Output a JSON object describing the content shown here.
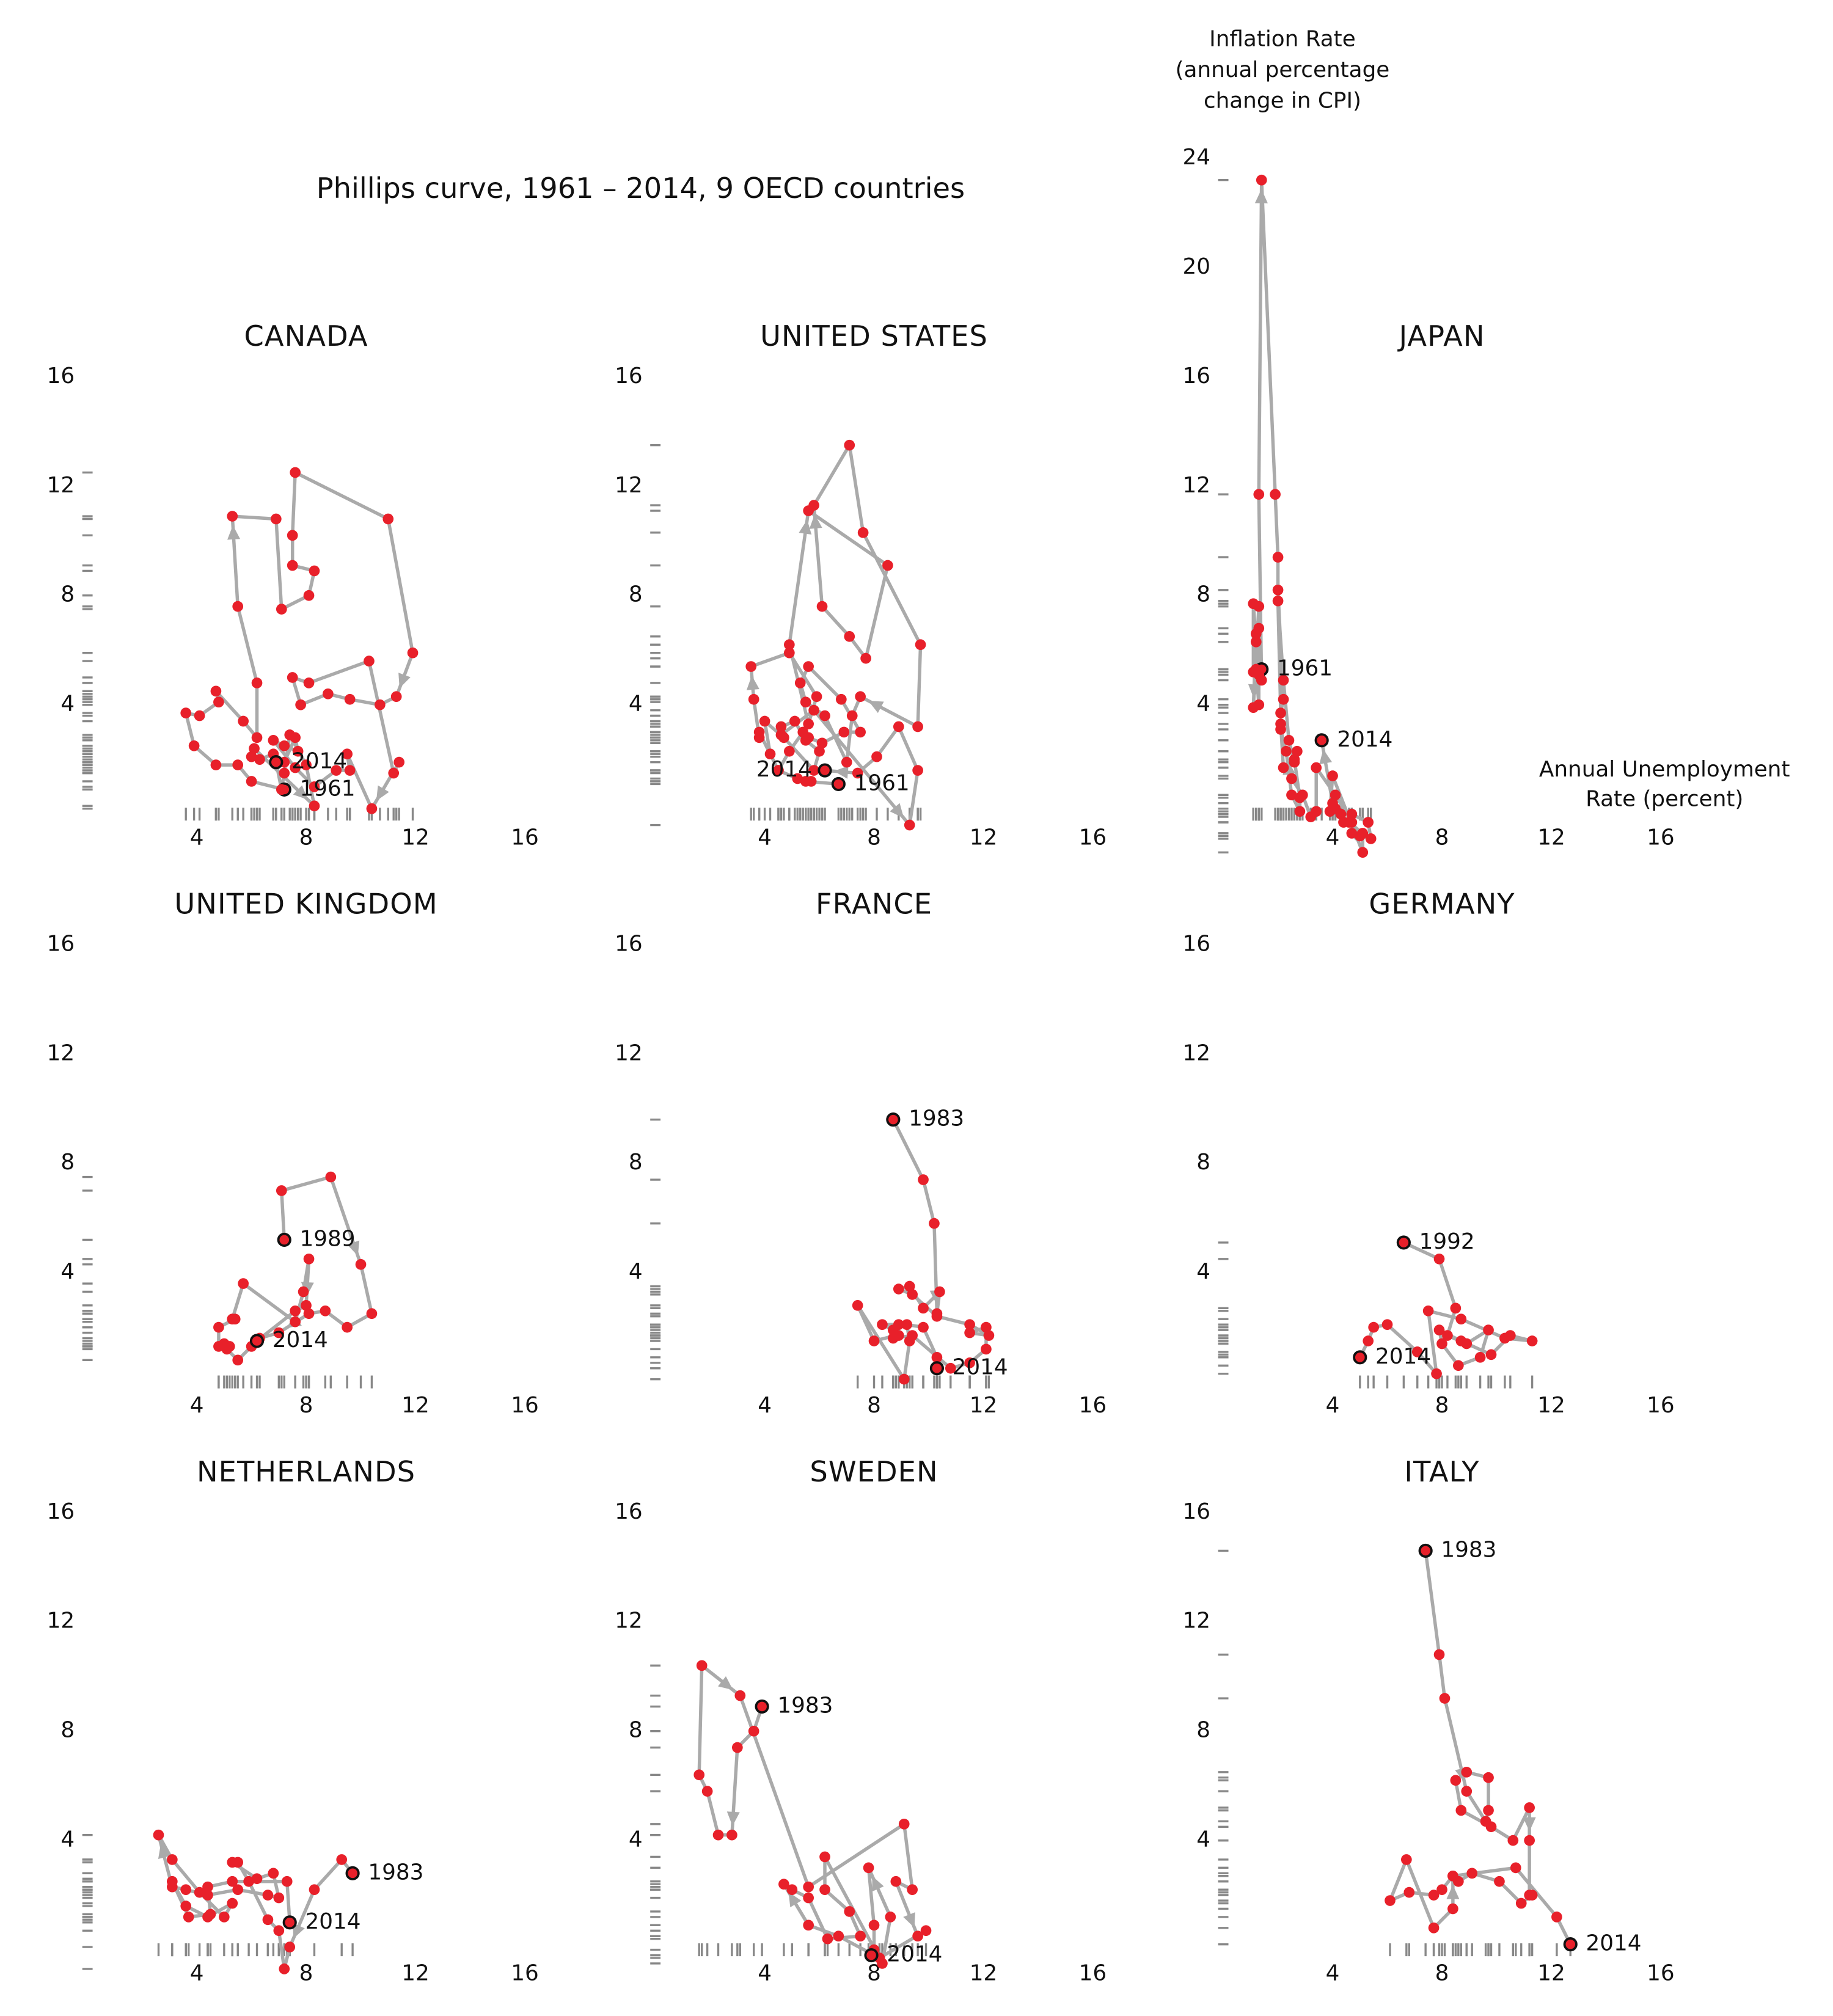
{
  "title": "Phillips curve, 1961 – 2014, 9 OECD countries",
  "chart_data": [
    {
      "type": "scatter",
      "title": "CANADA",
      "start_label": "1961",
      "end_label": "2014",
      "x": [
        7.2,
        6.0,
        5.5,
        4.7,
        3.9,
        3.6,
        4.1,
        4.8,
        4.7,
        5.7,
        6.2,
        6.2,
        5.5,
        5.3,
        6.9,
        7.1,
        8.1,
        8.3,
        7.5,
        7.5,
        7.6,
        11.0,
        11.9,
        11.3,
        10.7,
        9.6,
        8.8,
        7.8,
        7.5,
        8.1,
        10.3,
        11.2,
        11.4,
        10.4,
        9.5,
        9.6,
        9.1,
        8.3,
        7.6,
        6.8,
        7.2,
        7.7,
        7.6,
        7.2,
        6.8,
        6.3,
        6.0,
        6.1,
        8.3,
        8.0,
        7.4,
        7.2,
        7.1,
        6.9
      ],
      "y": [
        0.9,
        1.2,
        1.8,
        1.8,
        2.5,
        3.7,
        3.6,
        4.1,
        4.5,
        3.4,
        2.8,
        4.8,
        7.6,
        10.9,
        10.8,
        7.5,
        8.0,
        8.9,
        9.1,
        10.2,
        12.5,
        10.8,
        5.9,
        4.3,
        4.0,
        4.2,
        4.4,
        4.0,
        5.0,
        4.8,
        5.6,
        1.5,
        1.9,
        0.2,
        2.2,
        1.6,
        1.6,
        1.0,
        1.7,
        2.7,
        2.5,
        2.3,
        2.8,
        1.9,
        2.2,
        2.0,
        2.1,
        2.4,
        0.3,
        1.8,
        2.9,
        1.5,
        0.9,
        1.9
      ],
      "xlim": [
        0,
        16
      ],
      "ylim": [
        0,
        16
      ],
      "xticks": [
        4,
        8,
        12,
        16
      ],
      "yticks": [
        4,
        8,
        12,
        16
      ],
      "color": "#e8202a",
      "line_color": "#aaaaaa"
    },
    {
      "type": "scatter",
      "title": "UNITED STATES",
      "start_label": "1961",
      "end_label": "2014",
      "x": [
        6.7,
        5.5,
        5.7,
        5.2,
        4.5,
        3.8,
        3.8,
        3.6,
        3.5,
        4.9,
        5.9,
        5.6,
        4.9,
        5.6,
        8.5,
        7.7,
        7.1,
        6.1,
        5.8,
        7.1,
        7.6,
        9.7,
        9.6,
        7.5,
        7.2,
        7.0,
        6.2,
        5.5,
        5.3,
        5.6,
        6.8,
        7.5,
        6.9,
        6.1,
        5.6,
        5.4,
        4.9,
        4.5,
        4.2,
        4.0,
        4.7,
        5.8,
        6.0,
        5.5,
        5.1,
        4.6,
        4.6,
        5.8,
        9.3,
        9.6,
        8.9,
        8.1,
        7.4,
        6.2
      ],
      "y": [
        1.1,
        1.2,
        1.2,
        1.3,
        1.6,
        3.0,
        2.8,
        4.2,
        5.4,
        5.9,
        4.3,
        3.3,
        6.2,
        11.1,
        9.1,
        5.7,
        6.5,
        7.6,
        11.3,
        13.5,
        10.3,
        6.2,
        3.2,
        4.3,
        3.6,
        1.9,
        3.6,
        4.1,
        4.8,
        5.4,
        4.2,
        3.0,
        3.0,
        2.6,
        2.8,
        3.0,
        2.3,
        1.6,
        2.2,
        3.4,
        2.8,
        1.6,
        2.3,
        2.7,
        3.4,
        3.2,
        2.9,
        3.8,
        -0.4,
        1.6,
        3.2,
        2.1,
        1.5,
        1.6
      ],
      "xlim": [
        0,
        16
      ],
      "ylim": [
        0,
        16
      ],
      "xticks": [
        4,
        8,
        12,
        16
      ],
      "yticks": [
        4,
        8,
        12,
        16
      ],
      "color": "#e8202a",
      "line_color": "#aaaaaa"
    },
    {
      "type": "scatter",
      "title": "JAPAN",
      "start_label": "1961",
      "end_label": "2014",
      "y_label": [
        "Inflation Rate",
        "(annual percentage",
        "change in CPI)"
      ],
      "x_label": [
        "Annual Unemployment",
        "Rate (percent)"
      ],
      "x": [
        1.4,
        1.3,
        1.3,
        1.1,
        1.2,
        1.3,
        1.3,
        1.2,
        1.1,
        1.1,
        1.2,
        1.4,
        1.3,
        1.4,
        1.9,
        2.0,
        2.0,
        2.2,
        2.1,
        2.0,
        2.2,
        2.4,
        2.6,
        2.7,
        2.6,
        2.8,
        2.8,
        2.5,
        2.3,
        2.1,
        2.1,
        2.2,
        2.5,
        2.9,
        3.2,
        3.4,
        3.4,
        4.1,
        4.7,
        4.7,
        5.0,
        5.4,
        5.3,
        4.7,
        4.4,
        4.1,
        3.9,
        4.0,
        5.1,
        5.1,
        4.6,
        4.3,
        4.0,
        3.6
      ],
      "y": [
        5.3,
        6.8,
        7.6,
        3.9,
        6.6,
        5.1,
        4.0,
        5.3,
        5.2,
        7.7,
        6.3,
        4.9,
        11.7,
        23.2,
        11.7,
        9.4,
        8.2,
        4.2,
        3.7,
        7.8,
        4.9,
        2.7,
        1.9,
        2.3,
        2.0,
        0.6,
        0.1,
        0.7,
        2.3,
        3.1,
        3.3,
        1.7,
        1.3,
        0.7,
        -0.1,
        0.1,
        1.7,
        0.7,
        -0.3,
        -0.7,
        -0.8,
        -0.9,
        -0.3,
        0.0,
        -0.3,
        0.2,
        0.1,
        1.4,
        -1.4,
        -0.7,
        -0.3,
        0.0,
        0.4,
        2.7
      ],
      "xlim": [
        0,
        16
      ],
      "ylim": [
        0,
        24
      ],
      "xticks": [
        4,
        8,
        12,
        16
      ],
      "yticks": [
        4,
        8,
        12,
        16,
        20,
        24
      ],
      "color": "#e8202a",
      "line_color": "#aaaaaa"
    },
    {
      "type": "scatter",
      "title": "UNITED KINGDOM",
      "start_label": "1989",
      "end_label": "2014",
      "x": [
        7.2,
        7.1,
        8.9,
        10.0,
        10.4,
        9.5,
        8.7,
        8.1,
        7.0,
        6.3,
        6.0,
        5.5,
        5.1,
        5.2,
        5.0,
        4.8,
        4.8,
        5.4,
        5.3,
        5.7,
        7.6,
        7.9,
        8.1,
        8.0,
        7.6,
        6.2
      ],
      "y": [
        5.2,
        7.0,
        7.5,
        4.3,
        2.5,
        2.0,
        2.6,
        2.5,
        1.8,
        1.6,
        1.3,
        0.8,
        1.2,
        1.3,
        1.4,
        1.3,
        2.0,
        2.3,
        2.3,
        3.6,
        2.2,
        3.3,
        4.5,
        2.8,
        2.6,
        1.5
      ],
      "xlim": [
        0,
        16
      ],
      "ylim": [
        0,
        16
      ],
      "xticks": [
        4,
        8,
        12,
        16
      ],
      "yticks": [
        4,
        8,
        12,
        16
      ],
      "color": "#e8202a",
      "line_color": "#aaaaaa"
    },
    {
      "type": "scatter",
      "title": "FRANCE",
      "start_label": "1983",
      "end_label": "2014",
      "x": [
        8.7,
        9.8,
        10.2,
        10.3,
        10.4,
        9.8,
        9.3,
        8.9,
        9.4,
        10.3,
        11.5,
        12.2,
        11.5,
        12.1,
        12.1,
        11.5,
        10.8,
        9.4,
        8.7,
        8.7,
        8.3,
        8.9,
        8.9,
        8.8,
        8.0,
        7.4,
        9.1,
        9.3,
        9.2,
        9.8,
        10.3,
        10.3
      ],
      "y": [
        9.6,
        7.4,
        5.8,
        2.5,
        3.3,
        2.7,
        3.5,
        3.4,
        3.2,
        2.4,
        2.1,
        1.7,
        1.8,
        2.0,
        1.2,
        0.7,
        0.5,
        1.7,
        1.6,
        1.9,
        2.1,
        2.1,
        1.7,
        1.7,
        1.5,
        2.8,
        0.1,
        1.5,
        2.1,
        2.0,
        0.9,
        0.5
      ],
      "xlim": [
        0,
        16
      ],
      "ylim": [
        0,
        16
      ],
      "xticks": [
        4,
        8,
        12,
        16
      ],
      "yticks": [
        4,
        8,
        12,
        16
      ],
      "color": "#e8202a",
      "line_color": "#aaaaaa"
    },
    {
      "type": "scatter",
      "title": "GERMANY",
      "start_label": "1992",
      "end_label": "2014",
      "x": [
        6.6,
        7.9,
        8.5,
        8.2,
        8.9,
        9.7,
        9.4,
        8.6,
        8.0,
        7.9,
        8.7,
        9.8,
        10.5,
        11.3,
        10.3,
        8.7,
        7.5,
        7.8,
        7.1,
        6.0,
        5.5,
        5.3,
        5.0
      ],
      "y": [
        5.1,
        4.5,
        2.7,
        1.7,
        1.4,
        1.9,
        0.9,
        0.6,
        1.4,
        1.9,
        1.5,
        1.0,
        1.7,
        1.5,
        1.6,
        2.3,
        2.6,
        0.3,
        1.1,
        2.1,
        2.0,
        1.5,
        0.9
      ],
      "xlim": [
        0,
        16
      ],
      "ylim": [
        0,
        16
      ],
      "xticks": [
        4,
        8,
        12,
        16
      ],
      "yticks": [
        4,
        8,
        12,
        16
      ],
      "color": "#e8202a",
      "line_color": "#aaaaaa"
    },
    {
      "type": "scatter",
      "title": "NETHERLANDS",
      "start_label": "1983",
      "end_label": "2014",
      "x": [
        9.7,
        9.3,
        8.3,
        7.4,
        7.2,
        7.0,
        6.6,
        5.9,
        5.5,
        5.3,
        6.2,
        6.8,
        7.0,
        6.6,
        5.5,
        4.4,
        3.6,
        3.1,
        2.6,
        3.1,
        4.1,
        5.0,
        5.3,
        4.4,
        3.6,
        3.1,
        3.7,
        4.5,
        4.4,
        5.3,
        7.3,
        7.4
      ],
      "y": [
        2.8,
        3.3,
        2.2,
        0.1,
        -0.7,
        0.7,
        1.1,
        2.5,
        3.2,
        3.2,
        2.6,
        2.8,
        1.9,
        2.0,
        2.2,
        2.0,
        2.2,
        2.3,
        4.2,
        3.3,
        2.1,
        1.2,
        1.7,
        1.2,
        1.6,
        2.5,
        1.2,
        1.3,
        2.3,
        2.5,
        2.5,
        1.0
      ],
      "xlim": [
        0,
        16
      ],
      "ylim": [
        0,
        16
      ],
      "xticks": [
        4,
        8,
        12,
        16
      ],
      "yticks": [
        4,
        8,
        12,
        16
      ],
      "color": "#e8202a",
      "line_color": "#aaaaaa"
    },
    {
      "type": "scatter",
      "title": "SWEDEN",
      "start_label": "1983",
      "end_label": "2014",
      "x": [
        3.9,
        3.6,
        3.0,
        2.8,
        2.3,
        1.9,
        1.6,
        1.7,
        3.1,
        5.6,
        9.1,
        9.4,
        8.8,
        9.6,
        9.9,
        8.2,
        6.7,
        5.6,
        4.7,
        5.0,
        5.6,
        6.3,
        7.5,
        7.1,
        6.2,
        6.2,
        8.3,
        8.6,
        7.8,
        8.0,
        8.0,
        7.9
      ],
      "y": [
        8.9,
        8.0,
        7.4,
        4.2,
        4.2,
        5.8,
        6.4,
        10.4,
        9.3,
        2.3,
        4.6,
        2.2,
        2.5,
        0.5,
        0.7,
        -0.3,
        0.5,
        0.9,
        2.4,
        2.2,
        1.9,
        0.4,
        0.5,
        1.4,
        2.2,
        3.4,
        -0.5,
        1.2,
        3.0,
        0.9,
        0.0,
        -0.2
      ],
      "xlim": [
        0,
        16
      ],
      "ylim": [
        0,
        16
      ],
      "xticks": [
        4,
        8,
        12,
        16
      ],
      "yticks": [
        4,
        8,
        12,
        16
      ],
      "color": "#e8202a",
      "line_color": "#aaaaaa"
    },
    {
      "type": "scatter",
      "title": "ITALY",
      "start_label": "1983",
      "end_label": "2014",
      "x": [
        7.4,
        7.9,
        8.1,
        8.9,
        9.6,
        9.7,
        9.7,
        8.9,
        8.5,
        8.7,
        9.8,
        10.6,
        11.2,
        11.2,
        11.2,
        11.3,
        10.9,
        10.1,
        9.1,
        8.6,
        8.4,
        8.0,
        7.7,
        6.8,
        6.1,
        6.7,
        7.7,
        8.4,
        8.4,
        10.7,
        12.2,
        12.7
      ],
      "y": [
        14.6,
        10.8,
        9.2,
        5.8,
        4.7,
        5.1,
        6.3,
        6.5,
        6.2,
        5.1,
        4.5,
        4.0,
        5.2,
        4.0,
        2.0,
        2.0,
        1.7,
        2.5,
        2.8,
        2.5,
        2.7,
        2.2,
        2.0,
        2.1,
        1.8,
        3.3,
        0.8,
        1.5,
        2.7,
        3.0,
        1.2,
        0.2
      ],
      "xlim": [
        0,
        16
      ],
      "ylim": [
        0,
        16
      ],
      "xticks": [
        4,
        8,
        12,
        16
      ],
      "yticks": [
        4,
        8,
        12,
        16
      ],
      "color": "#e8202a",
      "line_color": "#aaaaaa"
    }
  ]
}
